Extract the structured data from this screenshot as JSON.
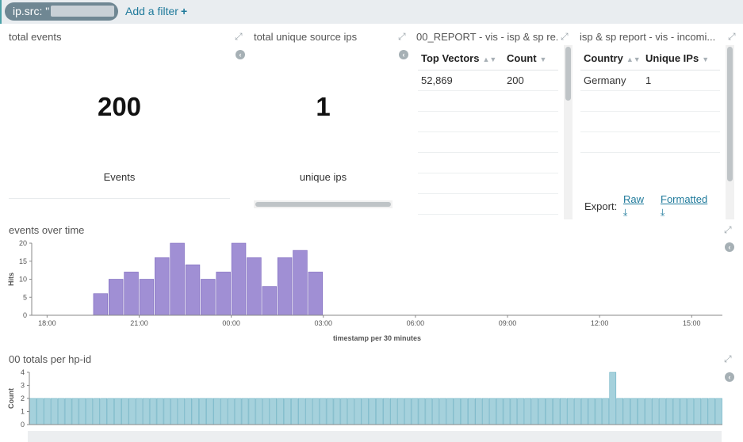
{
  "filter_bar": {
    "pill_label": "ip.src: \"",
    "add_filter_label": "Add a filter",
    "add_icon": "plus-icon"
  },
  "panels": {
    "total_events": {
      "title": "total events",
      "value": "200",
      "label": "Events"
    },
    "unique_ips": {
      "title": "total unique source ips",
      "value": "1",
      "label": "unique ips"
    },
    "report": {
      "title": "00_REPORT - vis - isp & sp re...",
      "columns": [
        "Top Vectors",
        "Count"
      ],
      "rows": [
        [
          "52,869",
          "200"
        ]
      ]
    },
    "isp_report": {
      "title": "isp & sp report - vis - incomi...",
      "columns": [
        "Country",
        "Unique IPs"
      ],
      "rows": [
        [
          "Germany",
          "1"
        ]
      ],
      "export_label": "Export:",
      "raw_label": "Raw",
      "formatted_label": "Formatted"
    },
    "events_over_time": {
      "title": "events over time"
    },
    "totals_per_hp": {
      "title": "00 totals per hp-id"
    }
  },
  "chart_data": [
    {
      "type": "bar",
      "title": "",
      "xlabel": "timestamp per 30 minutes",
      "ylabel": "Hits",
      "ylim": [
        0,
        20
      ],
      "yticks": [
        0,
        5,
        10,
        15,
        20
      ],
      "xtick_labels": [
        "18:00",
        "21:00",
        "00:00",
        "03:00",
        "06:00",
        "09:00",
        "12:00",
        "15:00"
      ],
      "categories": [
        "19:30",
        "20:00",
        "20:30",
        "21:00",
        "21:30",
        "22:00",
        "22:30",
        "23:00",
        "23:30",
        "00:00",
        "00:30",
        "01:00",
        "01:30",
        "02:00",
        "02:30"
      ],
      "values": [
        6,
        10,
        12,
        10,
        16,
        20,
        14,
        10,
        12,
        20,
        16,
        8,
        16,
        18,
        12
      ],
      "color": "#a08fd4",
      "grid": false
    },
    {
      "type": "bar",
      "title": "",
      "xlabel": "",
      "ylabel": "Count",
      "ylim": [
        0,
        4
      ],
      "yticks": [
        0,
        1,
        2,
        3,
        4
      ],
      "bar_count": 98,
      "values": [
        2,
        2,
        2,
        2,
        2,
        2,
        2,
        2,
        2,
        2,
        2,
        2,
        2,
        2,
        2,
        2,
        2,
        2,
        2,
        2,
        2,
        2,
        2,
        2,
        2,
        2,
        2,
        2,
        2,
        2,
        2,
        2,
        2,
        2,
        2,
        2,
        2,
        2,
        2,
        2,
        2,
        2,
        2,
        2,
        2,
        2,
        2,
        2,
        2,
        2,
        2,
        2,
        2,
        2,
        2,
        2,
        2,
        2,
        2,
        2,
        2,
        2,
        2,
        2,
        2,
        2,
        2,
        2,
        2,
        2,
        2,
        2,
        2,
        2,
        2,
        2,
        2,
        2,
        2,
        2,
        2,
        2,
        4,
        2,
        2,
        2,
        2,
        2,
        2,
        2,
        2,
        2,
        2,
        2,
        2,
        2,
        2,
        2
      ],
      "color": "#a5d1dc",
      "grid": false
    }
  ]
}
